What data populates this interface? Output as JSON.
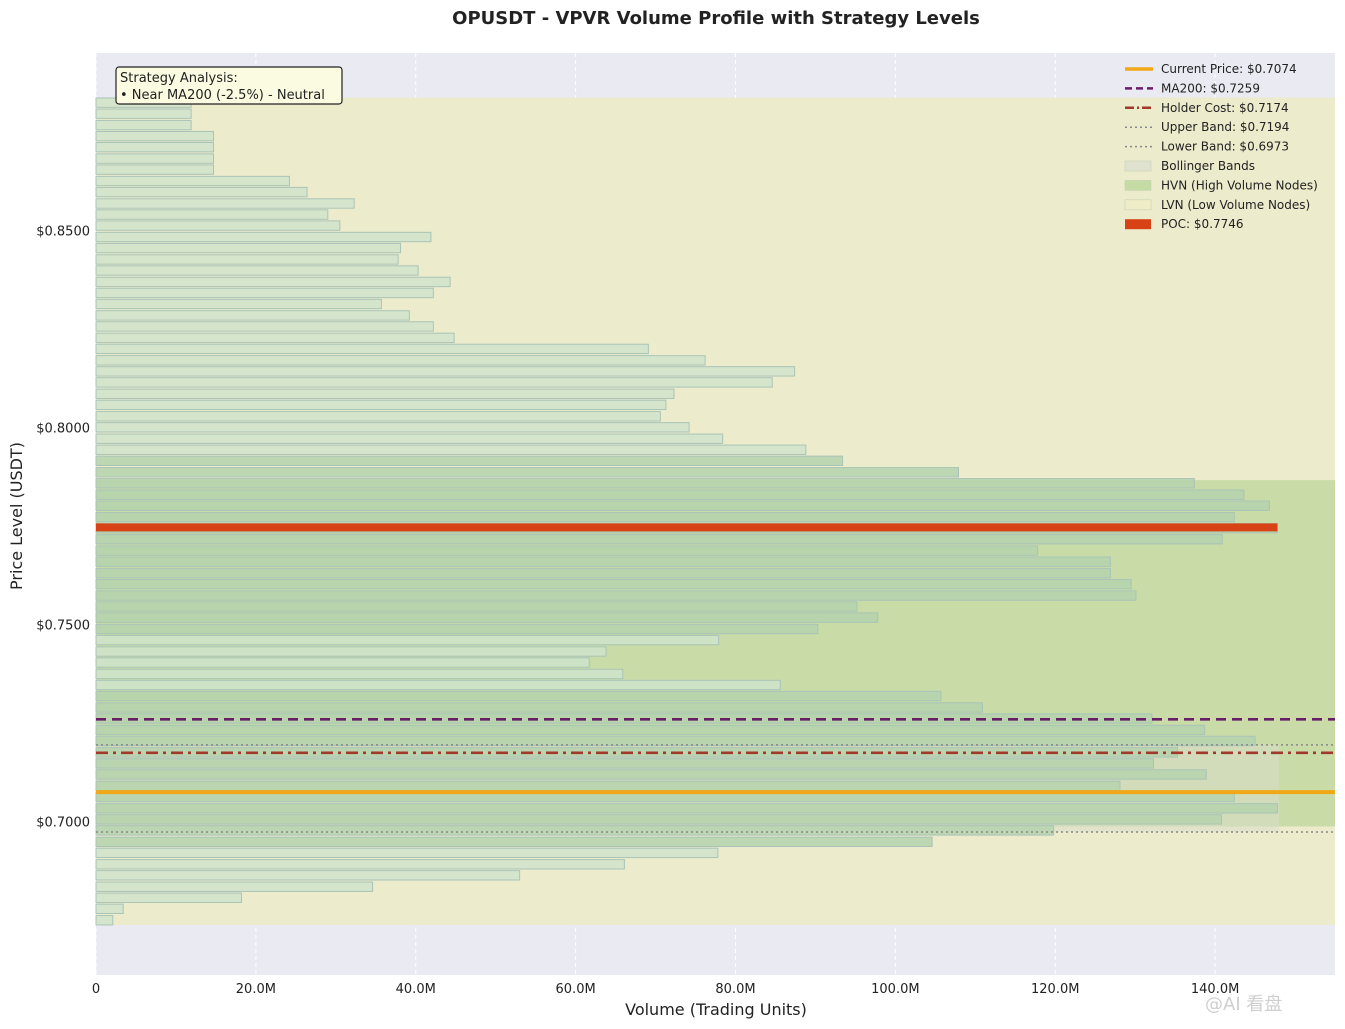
{
  "chart_data": {
    "type": "bar",
    "orientation": "horizontal",
    "title": "OPUSDT - VPVR Volume Profile with Strategy Levels",
    "xlabel": "Volume (Trading Units)",
    "ylabel": "Price Level (USDT)",
    "xlim": [
      0,
      155000000
    ],
    "ylim": [
      0.661,
      0.895
    ],
    "x_ticks": [
      {
        "value": 0,
        "label": "0"
      },
      {
        "value": 20000000,
        "label": "20.0M"
      },
      {
        "value": 40000000,
        "label": "40.0M"
      },
      {
        "value": 60000000,
        "label": "60.0M"
      },
      {
        "value": 80000000,
        "label": "80.0M"
      },
      {
        "value": 100000000,
        "label": "100.0M"
      },
      {
        "value": 120000000,
        "label": "120.0M"
      },
      {
        "value": 140000000,
        "label": "140.0M"
      }
    ],
    "y_ticks": [
      {
        "value": 0.85,
        "label": "$0.8500"
      },
      {
        "value": 0.8,
        "label": "$0.8000"
      },
      {
        "value": 0.75,
        "label": "$0.7500"
      },
      {
        "value": 0.7,
        "label": "$0.7000"
      }
    ],
    "grid": true,
    "bar_height": 0.00238,
    "price_levels": [
      0.6749,
      0.6778,
      0.6806,
      0.6834,
      0.6863,
      0.6891,
      0.692,
      0.6948,
      0.6977,
      0.7005,
      0.7033,
      0.7062,
      0.709,
      0.7119,
      0.7147,
      0.7175,
      0.7204,
      0.7232,
      0.7261,
      0.7289,
      0.7318,
      0.7346,
      0.7374,
      0.7403,
      0.7431,
      0.746,
      0.7488,
      0.7517,
      0.7545,
      0.7573,
      0.7602,
      0.763,
      0.7659,
      0.7687,
      0.7716,
      0.7744,
      0.7772,
      0.7801,
      0.7829,
      0.7858,
      0.7886,
      0.7915,
      0.7943,
      0.7971,
      0.8,
      0.8028,
      0.8057,
      0.8085,
      0.8114,
      0.8142,
      0.817,
      0.8199,
      0.8227,
      0.8256,
      0.8284,
      0.8313,
      0.8341,
      0.8369,
      0.8398,
      0.8426,
      0.8455,
      0.8483,
      0.8512,
      0.854,
      0.8568,
      0.8597,
      0.8625,
      0.8654,
      0.8682,
      0.8711,
      0.8739,
      0.8767,
      0.8796,
      0.8824
    ],
    "volumes": [
      2100000,
      3400000,
      18200000,
      34600000,
      53000000,
      66100000,
      77800000,
      104600000,
      119800000,
      140800000,
      147800000,
      142400000,
      128100000,
      138900000,
      132300000,
      135300000,
      145000000,
      138700000,
      132100000,
      110900000,
      105700000,
      85600000,
      65900000,
      61700000,
      63800000,
      77900000,
      90300000,
      97800000,
      95200000,
      130100000,
      129500000,
      126900000,
      126900000,
      117800000,
      140900000,
      147800000,
      142400000,
      146800000,
      143600000,
      137400000,
      107900000,
      93400000,
      88800000,
      78400000,
      74200000,
      70600000,
      71300000,
      72300000,
      84600000,
      87400000,
      76200000,
      69100000,
      44800000,
      42200000,
      39200000,
      35700000,
      42200000,
      44300000,
      40300000,
      37800000,
      38100000,
      41900000,
      30500000,
      29000000,
      32300000,
      26400000,
      24200000,
      14700000,
      14700000,
      14700000,
      14700000,
      11900000,
      11900000,
      11900000
    ],
    "hvn_volumes_min": 90000000,
    "poc": {
      "price": 0.7746,
      "volume": 147800000,
      "label": "POC: $0.7746",
      "color": "#d84315"
    },
    "levels": {
      "current_price": {
        "value": 0.7074,
        "label": "Current Price: $0.7074",
        "color": "#f0a818",
        "style": "solid"
      },
      "ma200": {
        "value": 0.7259,
        "label": "MA200: $0.7259",
        "color": "#6a1b6a",
        "style": "dashed"
      },
      "holder_cost": {
        "value": 0.7174,
        "label": "Holder Cost: $0.7174",
        "color": "#a0382c",
        "style": "dashdot"
      },
      "upper_band": {
        "value": 0.7194,
        "label": "Upper Band: $0.7194",
        "color": "#888888",
        "style": "dotted"
      },
      "lower_band": {
        "value": 0.6973,
        "label": "Lower Band: $0.6973",
        "color": "#888888",
        "style": "dotted"
      }
    },
    "zones": {
      "bollinger": {
        "from_volume": 0,
        "to_volume": 148000000,
        "from_price": 0.6973,
        "to_price": 0.7194,
        "color": "#d8dcc8"
      },
      "hvn": {
        "from_volume": 0,
        "to_volume": 155000000,
        "from_price": 0.6987,
        "to_price": 0.7866,
        "color": "#c9dca8"
      },
      "lvn": {
        "from_volume": 0,
        "to_volume": 155000000,
        "from_price": 0.6737,
        "to_price": 0.8837,
        "color": "#ecebcc"
      }
    },
    "legend": {
      "placement": "top-right",
      "entries": [
        {
          "key": "current_price",
          "label": "Current Price: $0.7074",
          "color": "#f0a818",
          "marker": "solid"
        },
        {
          "key": "ma200",
          "label": "MA200: $0.7259",
          "color": "#6a1b6a",
          "marker": "dashed"
        },
        {
          "key": "holder_cost",
          "label": "Holder Cost: $0.7174",
          "color": "#a0382c",
          "marker": "dashdot"
        },
        {
          "key": "upper_band",
          "label": "Upper Band: $0.7194",
          "color": "#888888",
          "marker": "dotted"
        },
        {
          "key": "lower_band",
          "label": "Lower Band: $0.6973",
          "color": "#888888",
          "marker": "dotted"
        },
        {
          "key": "bollinger",
          "label": "Bollinger Bands",
          "color": "#e0e2d0",
          "marker": "patch"
        },
        {
          "key": "hvn",
          "label": "HVN (High Volume Nodes)",
          "color": "#c5dba4",
          "marker": "patch"
        },
        {
          "key": "lvn",
          "label": "LVN (Low Volume Nodes)",
          "color": "#eeedc8",
          "marker": "patch"
        },
        {
          "key": "poc",
          "label": "POC: $0.7746",
          "color": "#d84315",
          "marker": "thick"
        }
      ]
    },
    "annotation": {
      "lines": [
        "Strategy Analysis:",
        "• Near MA200 (-2.5%) - Neutral"
      ]
    }
  },
  "watermark": "@AI 看盘",
  "colors": {
    "plot_bg": "#eaeaf2",
    "bar_low": "#cfe3cc",
    "bar_high": "#b3d2ad",
    "bar_edge": "#a9c4b7",
    "grid": "#ffffff",
    "annotation_bg": "#fbfbe2"
  }
}
